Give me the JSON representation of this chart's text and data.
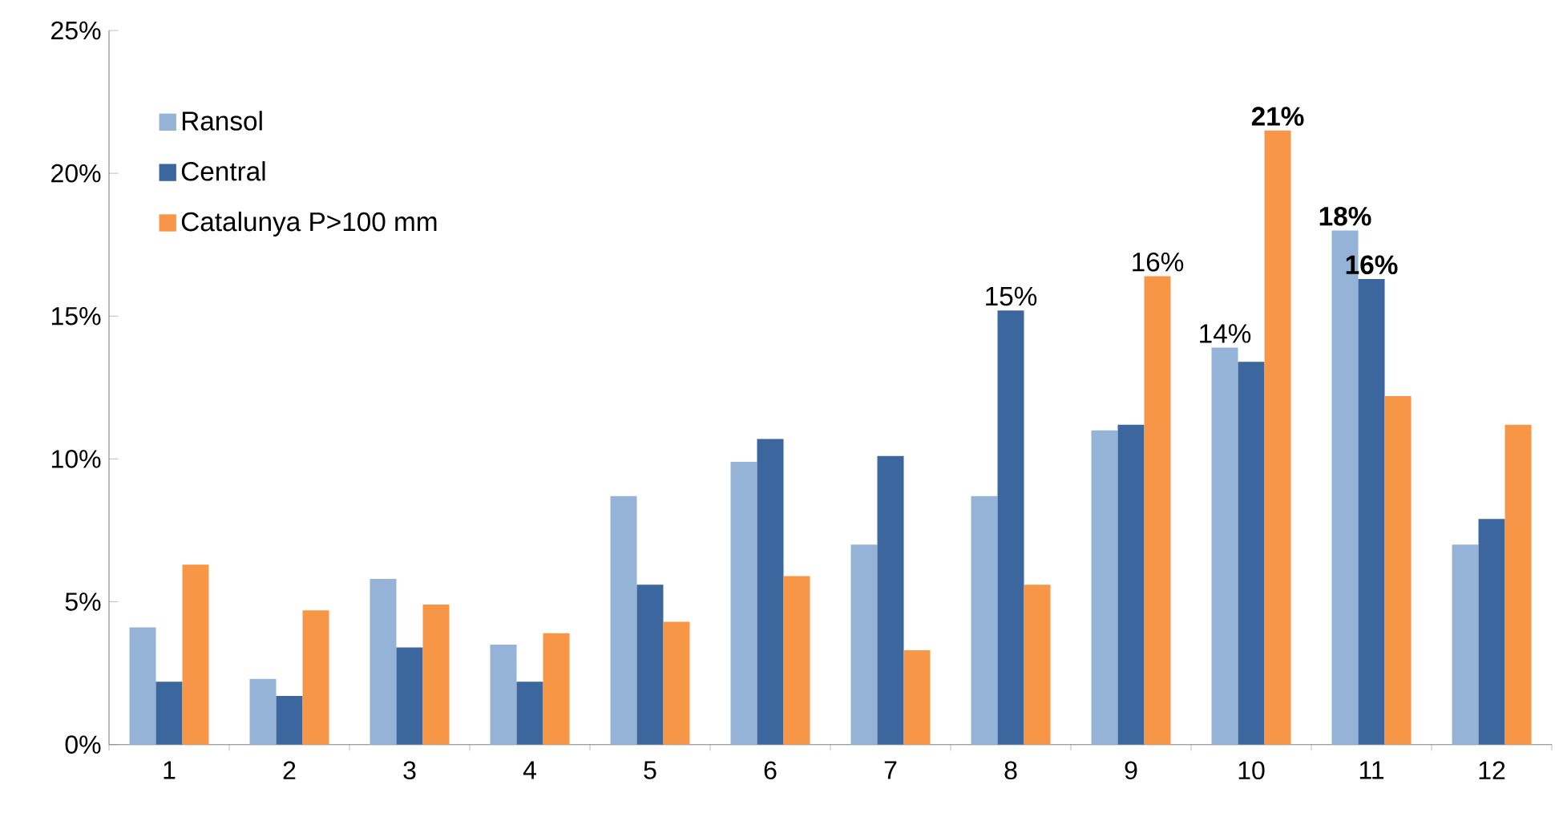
{
  "chart_data": {
    "type": "bar",
    "categories": [
      "1",
      "2",
      "3",
      "4",
      "5",
      "6",
      "7",
      "8",
      "9",
      "10",
      "11",
      "12"
    ],
    "series": [
      {
        "name": "Ransol",
        "color": "#95b3d7",
        "values": [
          4.1,
          2.3,
          5.8,
          3.5,
          8.7,
          9.9,
          7.0,
          8.7,
          11.0,
          13.9,
          18.0,
          7.0
        ],
        "value_labels": [
          null,
          null,
          null,
          null,
          null,
          null,
          null,
          null,
          null,
          "14%",
          "**18%**",
          null
        ]
      },
      {
        "name": "Central",
        "color": "#3b679e",
        "values": [
          2.2,
          1.7,
          3.4,
          2.2,
          5.6,
          10.7,
          10.1,
          15.2,
          11.2,
          13.4,
          16.3,
          7.9
        ],
        "value_labels": [
          null,
          null,
          null,
          null,
          null,
          null,
          null,
          "15%",
          null,
          null,
          "**16%**",
          null
        ]
      },
      {
        "name": "Catalunya P>100 mm",
        "color": "#f79646",
        "values": [
          6.3,
          4.7,
          4.9,
          3.9,
          4.3,
          5.9,
          3.3,
          5.6,
          16.4,
          21.5,
          12.2,
          11.2
        ],
        "value_labels": [
          null,
          null,
          null,
          null,
          null,
          null,
          null,
          null,
          "16%",
          "**21%**",
          null,
          null
        ]
      }
    ],
    "ylim": [
      0,
      25
    ],
    "yticks": [
      {
        "value": 0,
        "label": "0%"
      },
      {
        "value": 5,
        "label": "5%"
      },
      {
        "value": 10,
        "label": "10%"
      },
      {
        "value": 15,
        "label": "15%"
      },
      {
        "value": 20,
        "label": "20%"
      },
      {
        "value": 25,
        "label": "25%"
      }
    ],
    "legend": "top left",
    "grid": false
  }
}
